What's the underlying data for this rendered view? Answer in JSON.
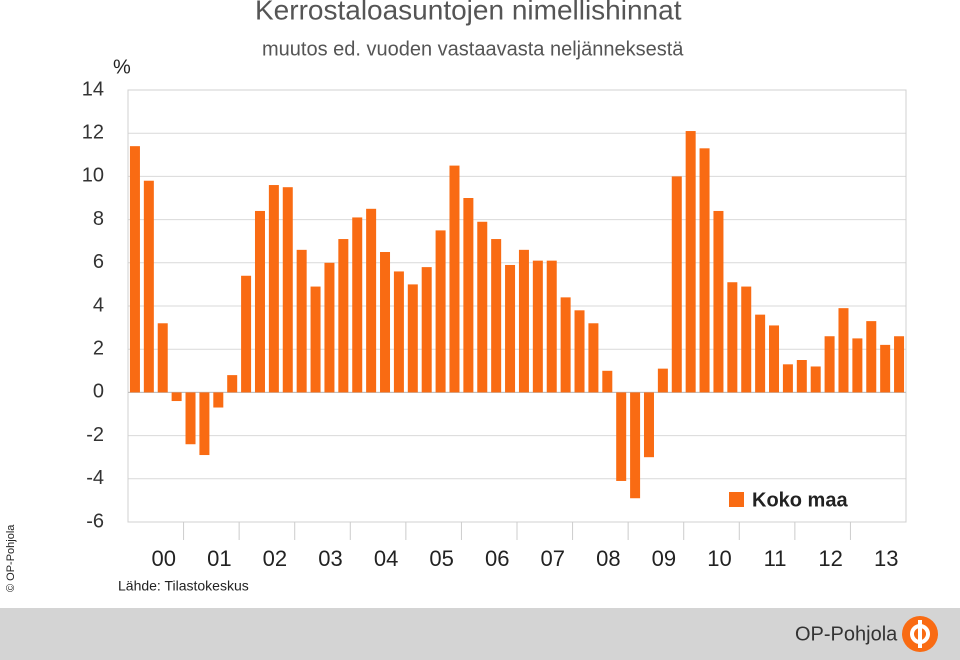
{
  "chart_data": {
    "type": "bar",
    "title": "Kerrostaloasuntojen nimellishinnat",
    "subtitle": "muutos ed. vuoden vastaavasta neljänneksestä",
    "y_unit": "%",
    "source": "Lähde: Tilastokeskus",
    "copyright": "© OP-Pohjola",
    "brand": "OP-Pohjola",
    "series_name": "Koko maa",
    "color": "#f96b13",
    "categories": [
      "00",
      "01",
      "02",
      "03",
      "04",
      "05",
      "06",
      "07",
      "08",
      "09",
      "10",
      "11",
      "12",
      "13"
    ],
    "values": [
      [
        11.4,
        9.8,
        3.2,
        -0.4
      ],
      [
        -2.4,
        -2.9,
        -0.7,
        0.8
      ],
      [
        5.4,
        8.4,
        9.6,
        9.5
      ],
      [
        6.6,
        4.9,
        6.0,
        7.1
      ],
      [
        8.1,
        8.5,
        6.5,
        5.6
      ],
      [
        5.0,
        5.8,
        7.5,
        10.5
      ],
      [
        9.0,
        7.9,
        7.1,
        5.9
      ],
      [
        6.6,
        6.1,
        6.1,
        4.4
      ],
      [
        3.8,
        3.2,
        1.0,
        -4.1
      ],
      [
        -4.9,
        -3.0,
        1.1,
        10.0
      ],
      [
        12.1,
        11.3,
        8.4,
        5.1
      ],
      [
        4.9,
        3.6,
        3.1,
        1.3
      ],
      [
        1.5,
        1.2,
        2.6,
        3.9
      ],
      [
        2.5,
        3.3,
        2.2,
        2.6
      ]
    ],
    "ylim": [
      -6,
      14
    ],
    "yticks": [
      -6,
      -4,
      -2,
      0,
      2,
      4,
      6,
      8,
      10,
      12,
      14
    ],
    "grid": true,
    "legend": "lower right"
  }
}
